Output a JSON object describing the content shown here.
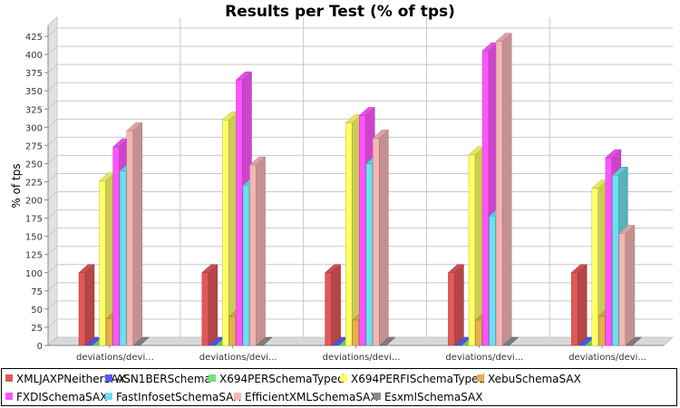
{
  "chart_data": {
    "type": "bar",
    "title": "Results per Test (% of tps)",
    "ylabel": "% of tps",
    "xlabel": "",
    "ylim": [
      0,
      440
    ],
    "yticks": [
      0,
      25,
      50,
      75,
      100,
      125,
      150,
      175,
      200,
      225,
      250,
      275,
      300,
      325,
      350,
      375,
      400,
      425
    ],
    "grid": true,
    "legend_position": "bottom",
    "three_d": true,
    "categories": [
      "deviations/devi...",
      "deviations/devi...",
      "deviations/devi...",
      "deviations/devi...",
      "deviations/devi..."
    ],
    "series": [
      {
        "name": "XMLJAXPNeitherSAX",
        "color": "#e25858",
        "values": [
          100,
          100,
          100,
          100,
          100
        ]
      },
      {
        "name": "ASN1BERSchema",
        "color": "#5a5aff",
        "values": [
          0,
          0,
          0,
          0,
          0
        ]
      },
      {
        "name": "X694PERSchemaTyped",
        "color": "#6fe56f",
        "values": [
          0,
          0,
          0,
          0,
          0
        ]
      },
      {
        "name": "X694PERFISchemaTyped",
        "color": "#ffff66",
        "values": [
          226,
          310,
          306,
          262,
          216
        ]
      },
      {
        "name": "XebuSchemaSAX",
        "color": "#e6b04a",
        "values": [
          37,
          40,
          35,
          35,
          40
        ]
      },
      {
        "name": "FXDISchemaSAX",
        "color": "#ff55ff",
        "values": [
          273,
          365,
          316,
          405,
          258
        ]
      },
      {
        "name": "FastInfosetSchemaSAX",
        "color": "#6be0ee",
        "values": [
          240,
          220,
          250,
          178,
          234
        ]
      },
      {
        "name": "EfficientXMLSchemaSAX",
        "color": "#f5b5b5",
        "values": [
          295,
          248,
          285,
          418,
          154
        ]
      },
      {
        "name": "EsxmlSchemaSAX",
        "color": "#8a8a8a",
        "values": [
          0,
          0,
          0,
          0,
          0
        ]
      }
    ]
  }
}
